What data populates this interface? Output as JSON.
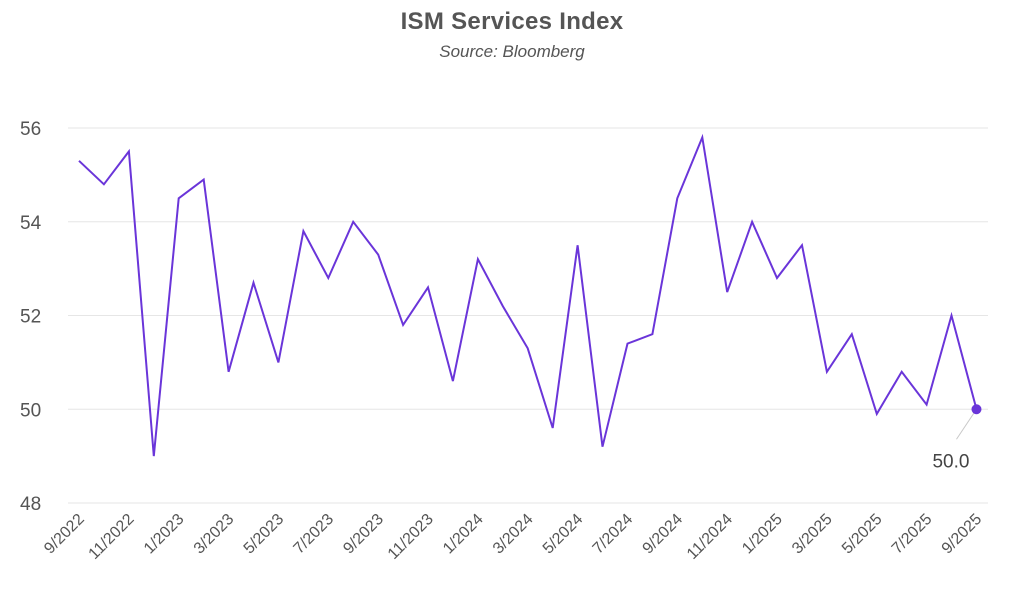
{
  "chart_data": {
    "type": "line",
    "title": "ISM Services Index",
    "subtitle": "Source: Bloomberg",
    "xlabel": "",
    "ylabel": "",
    "ylim": [
      48,
      56
    ],
    "yticks": [
      48,
      50,
      52,
      54,
      56
    ],
    "grid": true,
    "legend": "none",
    "x": [
      "9/2022",
      "10/2022",
      "11/2022",
      "12/2022",
      "1/2023",
      "2/2023",
      "3/2023",
      "4/2023",
      "5/2023",
      "6/2023",
      "7/2023",
      "8/2023",
      "9/2023",
      "10/2023",
      "11/2023",
      "12/2023",
      "1/2024",
      "2/2024",
      "3/2024",
      "4/2024",
      "5/2024",
      "6/2024",
      "7/2024",
      "8/2024",
      "9/2024",
      "10/2024",
      "11/2024",
      "12/2024",
      "1/2025",
      "2/2025",
      "3/2025",
      "4/2025",
      "5/2025",
      "6/2025",
      "7/2025",
      "8/2025",
      "9/2025"
    ],
    "xtick_labels": [
      "9/2022",
      "11/2022",
      "1/2023",
      "3/2023",
      "5/2023",
      "7/2023",
      "9/2023",
      "11/2023",
      "1/2024",
      "3/2024",
      "5/2024",
      "7/2024",
      "9/2024",
      "11/2024",
      "1/2025",
      "3/2025",
      "5/2025",
      "7/2025",
      "9/2025"
    ],
    "series": [
      {
        "name": "ISM Services Index",
        "color": "#6a35d9",
        "values": [
          55.3,
          54.8,
          55.5,
          49.0,
          54.5,
          54.9,
          50.8,
          52.7,
          51.0,
          53.8,
          52.8,
          54.0,
          53.3,
          51.8,
          52.6,
          50.6,
          53.2,
          52.2,
          51.3,
          49.6,
          53.5,
          49.2,
          51.4,
          51.6,
          54.5,
          55.8,
          52.5,
          54.0,
          52.8,
          53.5,
          50.8,
          51.6,
          49.9,
          50.8,
          50.1,
          52.0,
          50.0
        ]
      }
    ],
    "annotations": [
      {
        "x": "9/2025",
        "value": 50.0,
        "label": "50.0",
        "marker_color": "#6a35d9"
      }
    ]
  }
}
